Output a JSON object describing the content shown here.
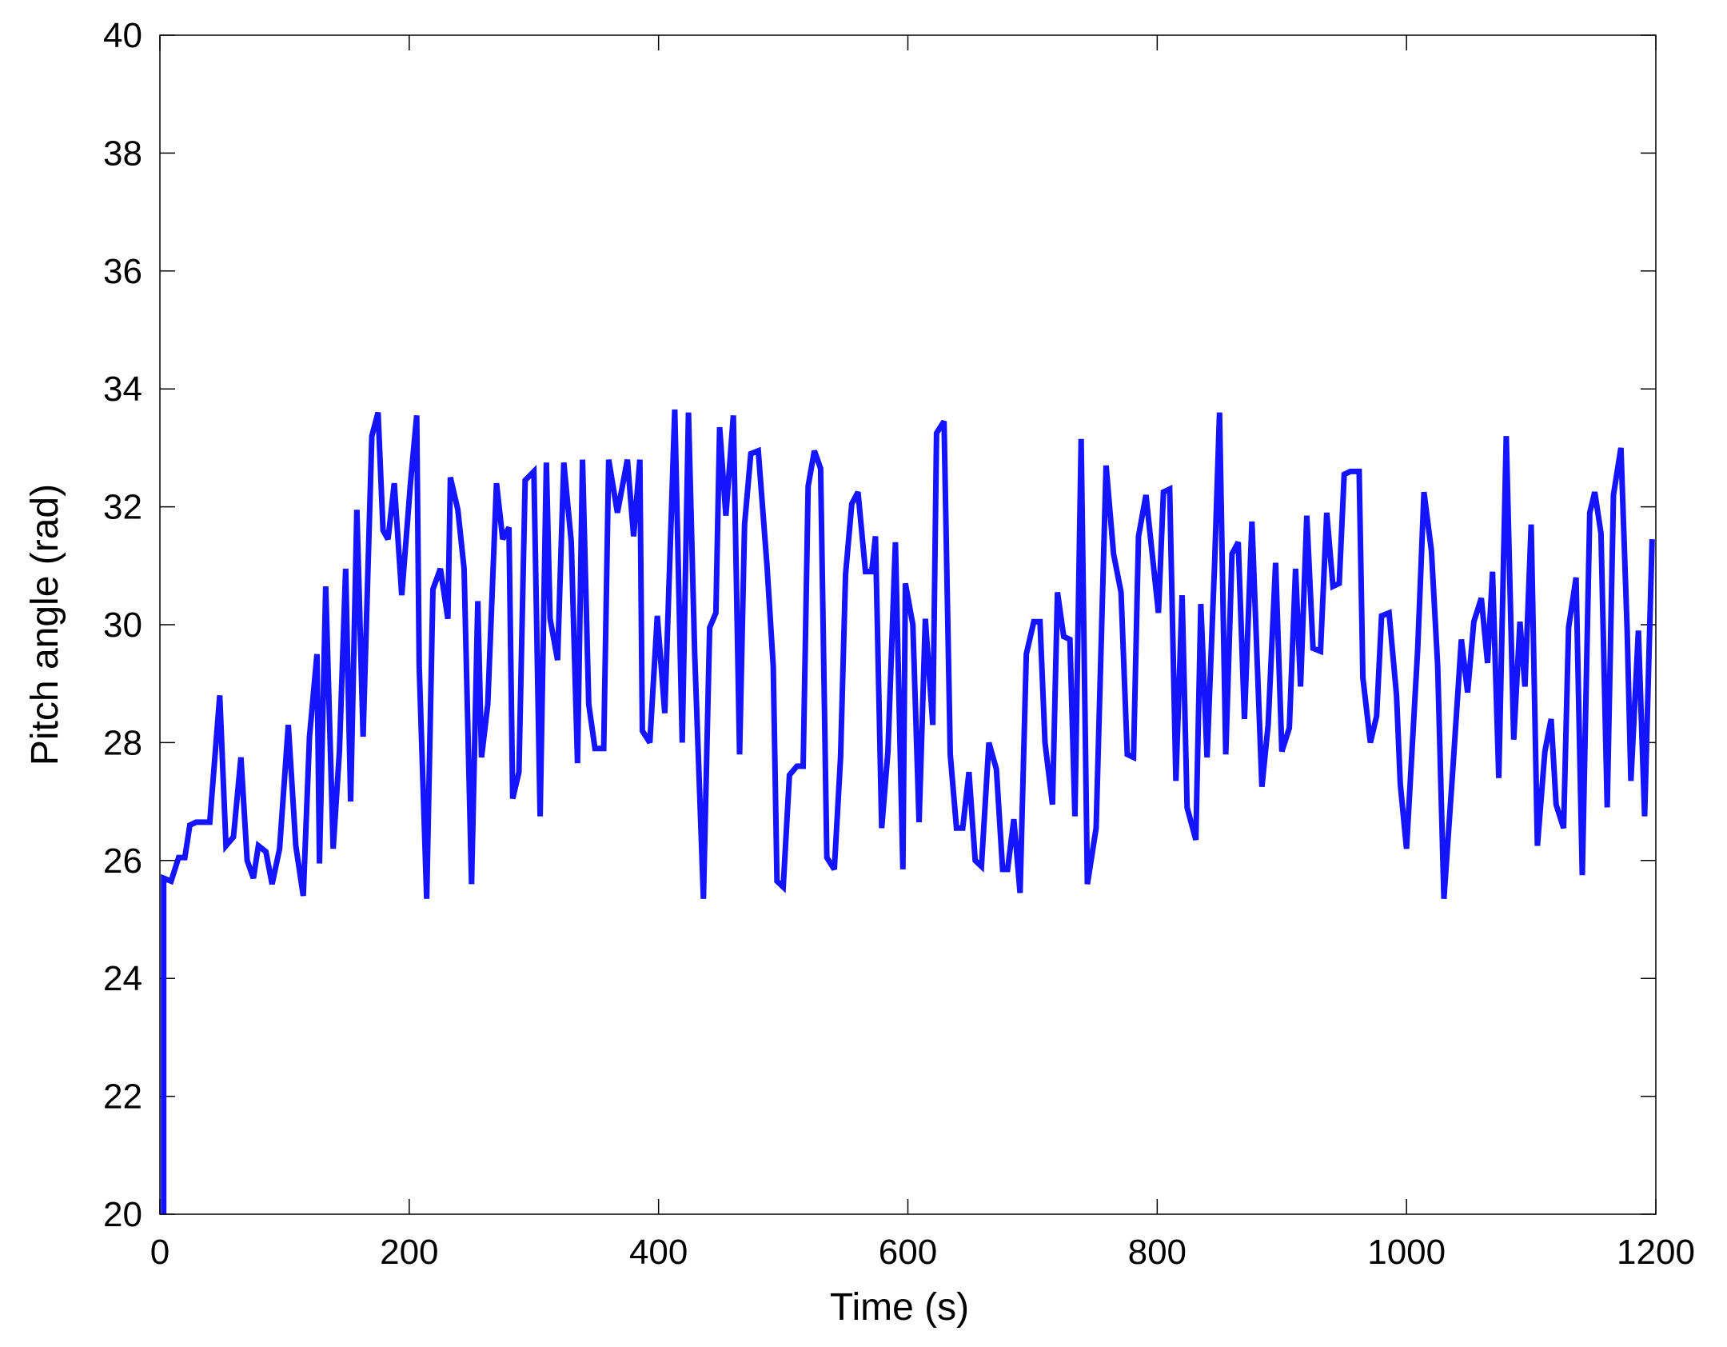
{
  "chart_data": {
    "type": "line",
    "x_label": "Time (s)",
    "y_label": "Pitch angle (rad)",
    "color": "#1414ff",
    "xlim": [
      0,
      1200
    ],
    "ylim": [
      20,
      40
    ],
    "xticks": [
      0,
      200,
      400,
      600,
      800,
      1000,
      1200
    ],
    "yticks": [
      20,
      22,
      24,
      26,
      28,
      30,
      32,
      34,
      36,
      38,
      40
    ],
    "grid": false,
    "x": [
      3,
      3,
      9,
      15,
      20,
      24,
      29,
      40,
      48,
      53,
      59,
      65,
      70,
      75,
      79,
      85,
      90,
      96,
      103,
      109,
      115,
      120,
      126,
      128,
      133,
      139,
      144,
      149,
      153,
      158,
      163,
      170,
      175,
      179,
      183,
      188,
      194,
      201,
      206,
      208,
      214,
      219,
      225,
      231,
      233,
      239,
      244,
      250,
      255,
      258,
      263,
      270,
      275,
      280,
      283,
      288,
      293,
      300,
      305,
      310,
      313,
      319,
      324,
      330,
      335,
      339,
      344,
      349,
      356,
      360,
      367,
      375,
      380,
      385,
      387,
      393,
      399,
      405,
      413,
      419,
      424,
      429,
      436,
      441,
      446,
      449,
      454,
      460,
      465,
      469,
      474,
      480,
      487,
      492,
      495,
      500,
      505,
      511,
      516,
      520,
      525,
      530,
      535,
      541,
      546,
      550,
      555,
      560,
      566,
      571,
      574,
      579,
      584,
      590,
      596,
      598,
      604,
      609,
      614,
      620,
      623,
      629,
      634,
      639,
      644,
      649,
      654,
      659,
      665,
      671,
      676,
      680,
      685,
      690,
      695,
      701,
      706,
      710,
      716,
      720,
      725,
      730,
      734,
      739,
      744,
      751,
      759,
      765,
      771,
      776,
      781,
      785,
      791,
      796,
      801,
      805,
      810,
      815,
      820,
      824,
      831,
      835,
      840,
      846,
      850,
      855,
      860,
      865,
      870,
      876,
      884,
      889,
      895,
      900,
      906,
      911,
      915,
      920,
      925,
      931,
      936,
      941,
      946,
      950,
      955,
      962,
      965,
      971,
      976,
      980,
      986,
      992,
      995,
      1000,
      1009,
      1014,
      1020,
      1025,
      1030,
      1037,
      1044,
      1049,
      1054,
      1060,
      1065,
      1069,
      1074,
      1080,
      1086,
      1091,
      1095,
      1100,
      1105,
      1111,
      1116,
      1120,
      1126,
      1130,
      1136,
      1141,
      1147,
      1151,
      1156,
      1161,
      1166,
      1172,
      1177,
      1180,
      1186,
      1191,
      1197
    ],
    "values": [
      20,
      25.7,
      25.65,
      26.05,
      26.05,
      26.6,
      26.65,
      26.65,
      28.8,
      26.25,
      26.4,
      27.75,
      26,
      25.7,
      26.25,
      26.15,
      25.6,
      26.2,
      28.3,
      26.25,
      25.4,
      28.1,
      29.5,
      25.95,
      30.65,
      26.2,
      27.85,
      30.95,
      27,
      31.95,
      28.1,
      33.2,
      33.6,
      31.6,
      31.45,
      32.4,
      30.5,
      32.4,
      33.55,
      29.3,
      25.35,
      30.6,
      30.95,
      30.1,
      32.5,
      31.95,
      30.95,
      25.6,
      30.4,
      27.75,
      28.65,
      32.4,
      31.45,
      31.65,
      27.05,
      27.5,
      32.45,
      32.6,
      26.75,
      32.75,
      30.1,
      29.4,
      32.75,
      31.4,
      27.65,
      32.8,
      28.65,
      27.9,
      27.9,
      32.8,
      31.9,
      32.8,
      31.5,
      32.8,
      28.2,
      28,
      30.15,
      28.5,
      33.65,
      28,
      33.6,
      29.5,
      25.35,
      29.95,
      30.2,
      33.35,
      31.85,
      33.55,
      27.8,
      31.7,
      32.9,
      32.95,
      31,
      29.3,
      25.65,
      25.55,
      27.45,
      27.6,
      27.6,
      32.35,
      32.95,
      32.65,
      26.05,
      25.85,
      27.75,
      30.85,
      32.05,
      32.25,
      30.9,
      30.9,
      31.5,
      26.55,
      27.85,
      31.4,
      25.85,
      30.7,
      30,
      26.65,
      30.1,
      28.3,
      33.25,
      33.45,
      27.8,
      26.55,
      26.55,
      27.5,
      26,
      25.9,
      28,
      27.55,
      25.85,
      25.85,
      26.7,
      25.45,
      29.5,
      30.05,
      30.05,
      28,
      26.95,
      30.55,
      29.8,
      29.75,
      26.75,
      33.15,
      25.6,
      26.55,
      32.7,
      31.2,
      30.55,
      27.8,
      27.75,
      31.5,
      32.2,
      31.2,
      30.2,
      32.25,
      32.3,
      27.35,
      30.5,
      26.9,
      26.35,
      30.35,
      27.75,
      31,
      33.6,
      27.8,
      31.2,
      31.4,
      28.4,
      31.75,
      27.25,
      28.3,
      31.05,
      27.85,
      28.25,
      30.95,
      28.95,
      31.85,
      29.6,
      29.55,
      31.9,
      30.65,
      30.7,
      32.55,
      32.6,
      32.6,
      29.1,
      28,
      28.45,
      30.15,
      30.2,
      28.8,
      27.3,
      26.2,
      29.6,
      32.25,
      31.25,
      29.3,
      25.35,
      27.5,
      29.75,
      28.85,
      30.05,
      30.45,
      29.35,
      30.9,
      27.4,
      33.2,
      28.05,
      30.05,
      28.95,
      31.7,
      26.25,
      27.85,
      28.4,
      26.95,
      26.55,
      29.95,
      30.8,
      25.75,
      31.9,
      32.25,
      31.55,
      26.9,
      32.2,
      33,
      29.9,
      27.35,
      29.9,
      26.75,
      31.45
    ]
  }
}
